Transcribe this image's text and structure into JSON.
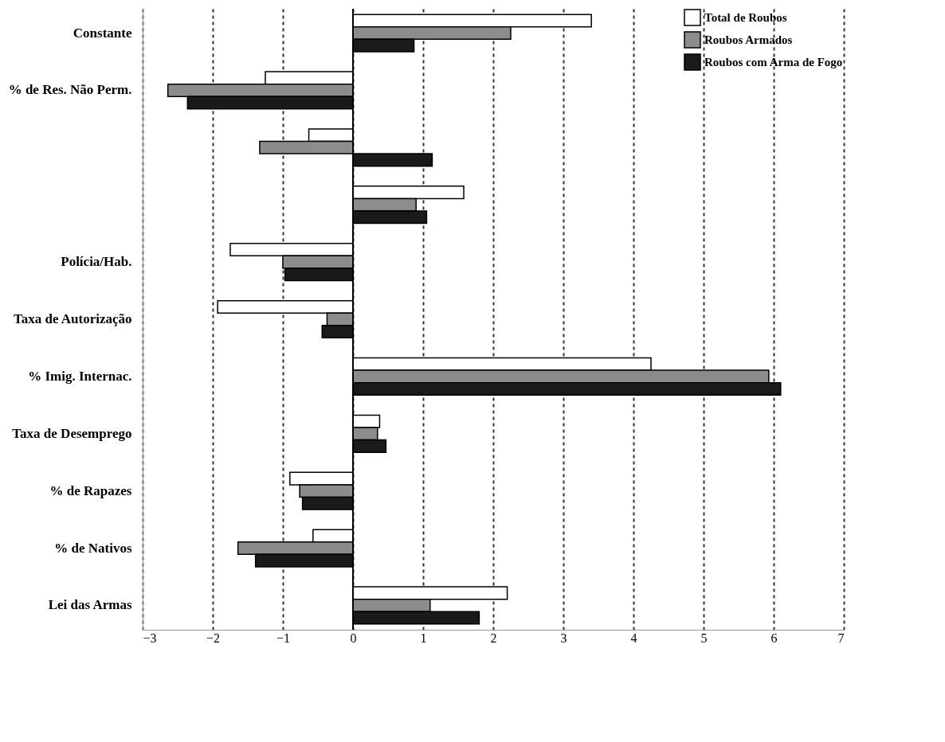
{
  "chart_data": {
    "type": "bar",
    "orientation": "horizontal",
    "categories": [
      "Constante",
      "% de Res. Não Perm.",
      null,
      null,
      "Polícia/Hab.",
      "Taxa de Autorização",
      "% Imig. Internac.",
      "Taxa de Desemprego",
      "% de Rapazes",
      "% de Nativos",
      "Lei das Armas"
    ],
    "series": [
      {
        "name": "Total de Roubos",
        "color": "#ffffff",
        "values": [
          3.4,
          -1.25,
          -0.63,
          1.58,
          -1.75,
          -1.93,
          4.25,
          0.38,
          -0.9,
          -0.57,
          2.2
        ]
      },
      {
        "name": "Roubos Armados",
        "color": "#8c8c8c",
        "values": [
          2.25,
          -2.64,
          -1.33,
          0.9,
          -1.0,
          -0.37,
          5.93,
          0.35,
          -0.76,
          -1.64,
          1.1
        ]
      },
      {
        "name": "Roubos com Arma de Fogo",
        "color": "#1a1a1a",
        "values": [
          0.87,
          -2.36,
          1.13,
          1.05,
          -0.97,
          -0.44,
          6.1,
          0.47,
          -0.72,
          -1.39,
          1.8
        ]
      }
    ],
    "xlim": [
      -3,
      7
    ],
    "xticks": [
      -3,
      -2,
      -1,
      0,
      1,
      2,
      3,
      4,
      5,
      6,
      7
    ],
    "grid": "x",
    "legend": "top right"
  }
}
